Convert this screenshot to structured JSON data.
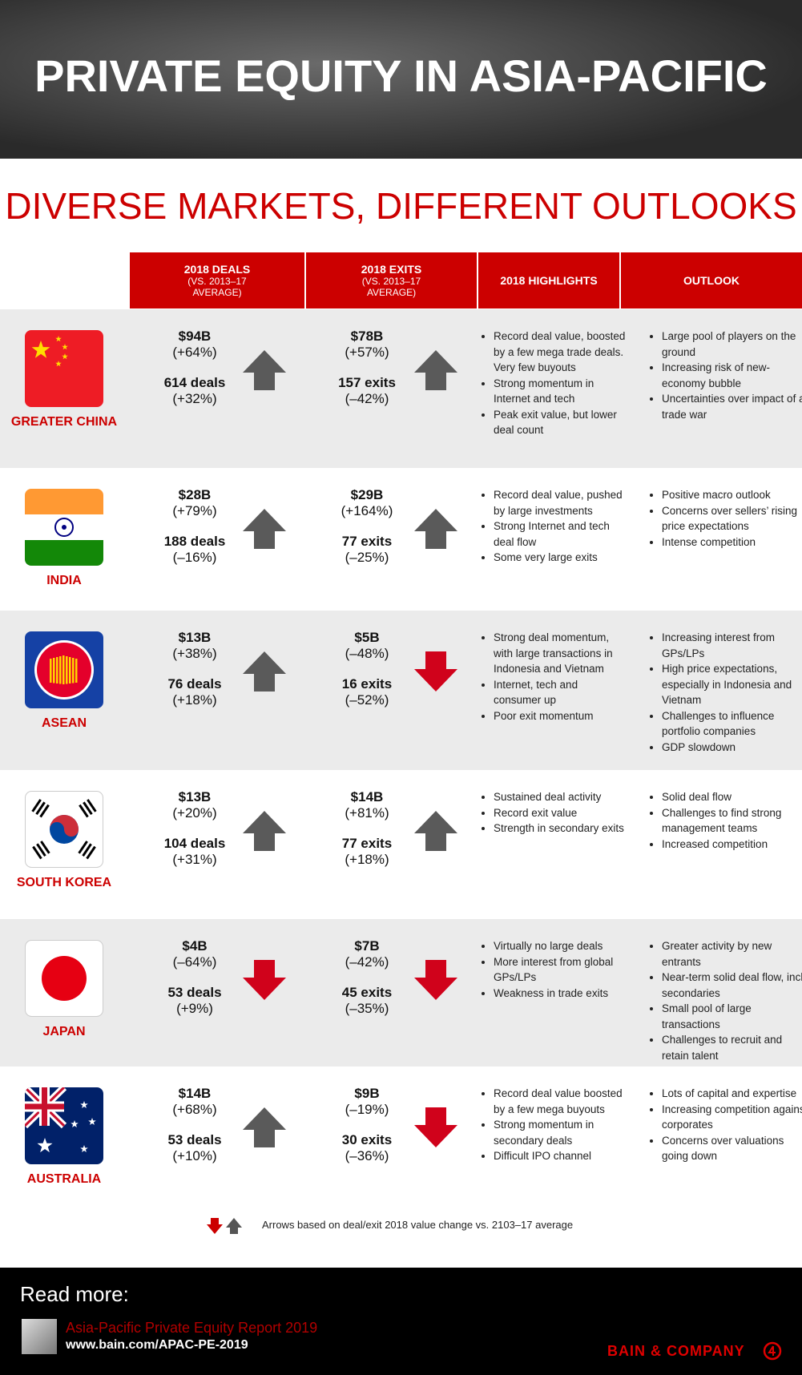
{
  "header": {
    "title": "PRIVATE EQUITY IN ASIA-PACIFIC",
    "subtitle": "DIVERSE MARKETS, DIFFERENT OUTLOOKS"
  },
  "table": {
    "columns": [
      {
        "title": "2018 DEALS",
        "note": "(VS. 2013–17 AVERAGE)"
      },
      {
        "title": "2018 EXITS",
        "note": "(VS. 2013–17 AVERAGE)"
      },
      {
        "title": "2018 HIGHLIGHTS"
      },
      {
        "title": "OUTLOOK"
      }
    ],
    "rows": [
      {
        "country": "GREATER CHINA",
        "deals": [
          "$94B",
          "(+64%)",
          "614 deals",
          "(+32%)"
        ],
        "deals_arrow": "up",
        "exits": [
          "$78B",
          "(+57%)",
          "157 exits",
          "(–42%)"
        ],
        "exits_arrow": "up",
        "highlights": [
          "Record deal value, boosted by a few mega trade deals. Very few buyouts",
          "Strong momentum in Internet and tech",
          "Peak exit value, but lower deal count"
        ],
        "outlook": [
          "Large pool of players on the ground",
          "Increasing risk of new-economy bubble",
          "Uncertainties over impact of a trade war"
        ]
      },
      {
        "country": "INDIA",
        "deals": [
          "$28B",
          "(+79%)",
          "188 deals",
          "(–16%)"
        ],
        "deals_arrow": "up",
        "exits": [
          "$29B",
          "(+164%)",
          "77 exits",
          "(–25%)"
        ],
        "exits_arrow": "up",
        "highlights": [
          "Record deal value, pushed by large investments",
          "Strong Internet and tech deal flow",
          "Some very large exits"
        ],
        "outlook": [
          "Positive macro outlook",
          "Concerns over sellers’ rising price expectations",
          "Intense competition"
        ]
      },
      {
        "country": "ASEAN",
        "deals": [
          "$13B",
          "(+38%)",
          "76 deals",
          "(+18%)"
        ],
        "deals_arrow": "up",
        "exits": [
          "$5B",
          "(–48%)",
          "16 exits",
          "(–52%)"
        ],
        "exits_arrow": "down",
        "highlights": [
          "Strong deal momentum, with large transactions in Indonesia and Vietnam",
          "Internet, tech and consumer up",
          "Poor exit momentum"
        ],
        "outlook": [
          "Increasing interest from GPs/LPs",
          "High price expectations, especially in Indonesia and Vietnam",
          "Challenges to influence portfolio companies",
          "GDP slowdown"
        ]
      },
      {
        "country": "SOUTH KOREA",
        "deals": [
          "$13B",
          "(+20%)",
          "104 deals",
          "(+31%)"
        ],
        "deals_arrow": "up",
        "exits": [
          "$14B",
          "(+81%)",
          "77 exits",
          "(+18%)"
        ],
        "exits_arrow": "up",
        "highlights": [
          "Sustained deal activity",
          "Record exit value",
          "Strength in secondary exits"
        ],
        "outlook": [
          "Solid deal flow",
          "Challenges to find strong management teams",
          "Increased competition"
        ]
      },
      {
        "country": "JAPAN",
        "deals": [
          "$4B",
          "(–64%)",
          "53 deals",
          "(+9%)"
        ],
        "deals_arrow": "down",
        "exits": [
          "$7B",
          "(–42%)",
          "45 exits",
          "(–35%)"
        ],
        "exits_arrow": "down",
        "highlights": [
          "Virtually no large deals",
          "More interest from global GPs/LPs",
          "Weakness in trade exits"
        ],
        "outlook": [
          "Greater activity by new entrants",
          "Near-term solid deal flow, incl. secondaries",
          "Small pool of large transactions",
          "Challenges to recruit and retain talent"
        ]
      },
      {
        "country": "AUSTRALIA",
        "deals": [
          "$14B",
          "(+68%)",
          "53 deals",
          "(+10%)"
        ],
        "deals_arrow": "up",
        "exits": [
          "$9B",
          "(–19%)",
          "30 exits",
          "(–36%)"
        ],
        "exits_arrow": "down",
        "highlights": [
          "Record deal value boosted by a few mega buyouts",
          "Strong momentum in secondary deals",
          "Difficult IPO channel"
        ],
        "outlook": [
          "Lots of capital and expertise",
          "Increasing competition against corporates",
          "Concerns over valuations going down"
        ]
      }
    ]
  },
  "legend": {
    "note": "Arrows based on deal/exit 2018 value change vs. 2103–17 average"
  },
  "footer": {
    "read_more": "Read more:",
    "report": "Asia-Pacific Private Equity Report 2019",
    "url": "www.bain.com/APAC-PE-2019",
    "brand": "BAIN & COMPANY"
  }
}
